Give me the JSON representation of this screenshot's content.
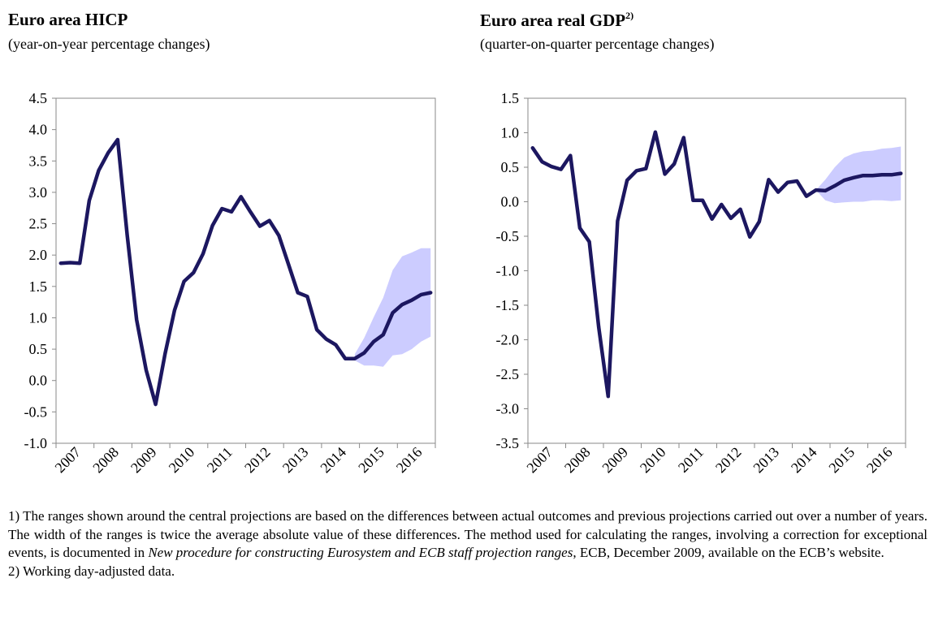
{
  "charts": [
    {
      "title": "Euro area HICP",
      "title_sup": "",
      "subtitle": "(year-on-year percentage changes)"
    },
    {
      "title": "Euro area real GDP",
      "title_sup": "2)",
      "subtitle": "(quarter-on-quarter percentage changes)"
    }
  ],
  "chart_data": [
    {
      "type": "line",
      "title": "Euro area HICP",
      "subtitle": "(year-on-year percentage changes)",
      "ylim": [
        -1.0,
        4.5
      ],
      "yticks": [
        "4.5",
        "4.0",
        "3.5",
        "3.0",
        "2.5",
        "2.0",
        "1.5",
        "1.0",
        "0.5",
        "0.0",
        "-0.5",
        "-1.0"
      ],
      "xlim": [
        2007,
        2017
      ],
      "xticks": [
        "2007",
        "2008",
        "2009",
        "2010",
        "2011",
        "2012",
        "2013",
        "2014",
        "2015",
        "2016"
      ],
      "grid": false,
      "series": [
        {
          "color": "#1c1760",
          "x": [
            2007.125,
            2007.375,
            2007.625,
            2007.875,
            2008.125,
            2008.375,
            2008.625,
            2008.875,
            2009.125,
            2009.375,
            2009.625,
            2009.875,
            2010.125,
            2010.375,
            2010.625,
            2010.875,
            2011.125,
            2011.375,
            2011.625,
            2011.875,
            2012.125,
            2012.375,
            2012.625,
            2012.875,
            2013.125,
            2013.375,
            2013.625,
            2013.875,
            2014.125,
            2014.375,
            2014.625,
            2014.875,
            2015.125,
            2015.375,
            2015.625,
            2015.875,
            2016.125,
            2016.375,
            2016.625,
            2016.875
          ],
          "y": [
            1.87,
            1.88,
            1.87,
            2.87,
            3.35,
            3.63,
            3.84,
            2.32,
            0.97,
            0.17,
            -0.38,
            0.43,
            1.12,
            1.58,
            1.72,
            2.02,
            2.47,
            2.74,
            2.69,
            2.93,
            2.69,
            2.46,
            2.55,
            2.31,
            1.86,
            1.4,
            1.34,
            0.81,
            0.66,
            0.57,
            0.35,
            0.35,
            0.44,
            0.62,
            0.73,
            1.08,
            1.21,
            1.28,
            1.37,
            1.4
          ]
        }
      ],
      "range": {
        "color": "#ccccff",
        "x": [
          2014.875,
          2015.125,
          2015.375,
          2015.625,
          2015.875,
          2016.125,
          2016.375,
          2016.625,
          2016.875
        ],
        "upper": [
          0.42,
          0.68,
          1.01,
          1.32,
          1.76,
          1.98,
          2.04,
          2.11,
          2.11
        ],
        "lower": [
          0.32,
          0.24,
          0.24,
          0.22,
          0.4,
          0.42,
          0.5,
          0.62,
          0.7
        ]
      }
    },
    {
      "type": "line",
      "title": "Euro area real GDP",
      "subtitle": "(quarter-on-quarter percentage changes)",
      "ylim": [
        -3.5,
        1.5
      ],
      "yticks": [
        "1.5",
        "1.0",
        "0.5",
        "0.0",
        "-0.5",
        "-1.0",
        "-1.5",
        "-2.0",
        "-2.5",
        "-3.0",
        "-3.5"
      ],
      "xlim": [
        2007,
        2017
      ],
      "xticks": [
        "2007",
        "2008",
        "2009",
        "2010",
        "2011",
        "2012",
        "2013",
        "2014",
        "2015",
        "2016"
      ],
      "grid": false,
      "series": [
        {
          "color": "#1c1760",
          "x": [
            2007.125,
            2007.375,
            2007.625,
            2007.875,
            2008.125,
            2008.375,
            2008.625,
            2008.875,
            2009.125,
            2009.375,
            2009.625,
            2009.875,
            2010.125,
            2010.375,
            2010.625,
            2010.875,
            2011.125,
            2011.375,
            2011.625,
            2011.875,
            2012.125,
            2012.375,
            2012.625,
            2012.875,
            2013.125,
            2013.375,
            2013.625,
            2013.875,
            2014.125,
            2014.375,
            2014.625,
            2014.875,
            2015.125,
            2015.375,
            2015.625,
            2015.875,
            2016.125,
            2016.375,
            2016.625,
            2016.875
          ],
          "y": [
            0.78,
            0.58,
            0.51,
            0.47,
            0.67,
            -0.38,
            -0.58,
            -1.82,
            -2.82,
            -0.28,
            0.31,
            0.45,
            0.48,
            1.01,
            0.4,
            0.55,
            0.93,
            0.02,
            0.02,
            -0.25,
            -0.04,
            -0.24,
            -0.11,
            -0.51,
            -0.29,
            0.32,
            0.14,
            0.28,
            0.3,
            0.08,
            0.17,
            0.16,
            0.23,
            0.31,
            0.35,
            0.38,
            0.38,
            0.39,
            0.39,
            0.41
          ]
        }
      ],
      "range": {
        "color": "#ccccff",
        "x": [
          2014.625,
          2014.875,
          2015.125,
          2015.375,
          2015.625,
          2015.875,
          2016.125,
          2016.375,
          2016.625,
          2016.875
        ],
        "upper": [
          0.17,
          0.32,
          0.5,
          0.64,
          0.7,
          0.73,
          0.74,
          0.77,
          0.78,
          0.8
        ],
        "lower": [
          0.17,
          0.02,
          -0.02,
          -0.01,
          0.0,
          0.0,
          0.02,
          0.02,
          0.01,
          0.02
        ]
      }
    }
  ],
  "notes": {
    "note1_part1": "1) The ranges shown around the central projections are based on the differences between actual outcomes and previous projections carried out over a number of years. The width of the ranges is twice the average absolute value of these differences. The method used for calculating the ranges, involving a correction for exceptional events, is documented in ",
    "note1_italic": "New procedure for constructing Eurosystem and ECB staff projection ranges",
    "note1_part2": ", ECB, December 2009, available on the ECB’s website.",
    "note2": "2) Working day-adjusted data."
  }
}
